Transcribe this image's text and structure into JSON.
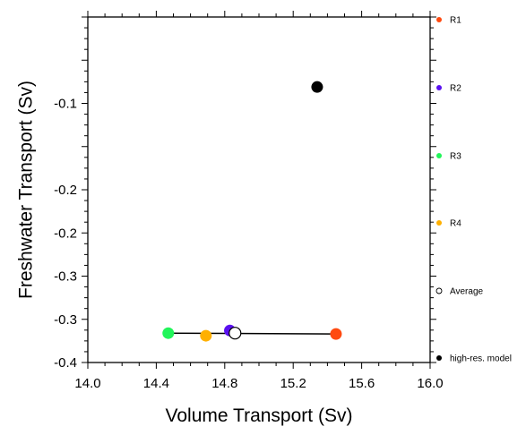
{
  "chart_data": {
    "type": "scatter",
    "xlabel": "Volume Transport (Sv)",
    "ylabel": "Freshwater Transport (Sv)",
    "xlim": [
      14.0,
      16.0
    ],
    "ylim": [
      -0.4,
      0.0
    ],
    "xticks": [
      "14.0",
      "14.4",
      "14.8",
      "15.2",
      "15.6",
      "16.0"
    ],
    "xtick_values": [
      14.0,
      14.4,
      14.8,
      15.2,
      15.6,
      16.0
    ],
    "yticks": [
      "-0.1",
      "-0.2",
      "-0.2",
      "-0.3",
      "-0.3",
      "-0.4"
    ],
    "ytick_values": [
      -0.1,
      -0.2,
      -0.25,
      -0.3,
      -0.35,
      -0.4
    ],
    "grid": false,
    "legend_position": "right",
    "series": [
      {
        "name": "R1",
        "color": "#ff4a10",
        "filled": true,
        "x": 15.45,
        "y": -0.367
      },
      {
        "name": "R2",
        "color": "#5a10f0",
        "filled": true,
        "x": 14.83,
        "y": -0.363
      },
      {
        "name": "R3",
        "color": "#22f55a",
        "filled": true,
        "x": 14.47,
        "y": -0.366
      },
      {
        "name": "R4",
        "color": "#ffb000",
        "filled": true,
        "x": 14.69,
        "y": -0.369
      },
      {
        "name": "Average",
        "color": "#000000",
        "filled": false,
        "x": 14.86,
        "y": -0.366
      },
      {
        "name": "high-res. model",
        "color": "#000000",
        "filled": true,
        "x": 15.34,
        "y": -0.081
      }
    ],
    "range_line": {
      "x": [
        14.47,
        15.45
      ],
      "y": [
        -0.366,
        -0.367
      ]
    }
  }
}
